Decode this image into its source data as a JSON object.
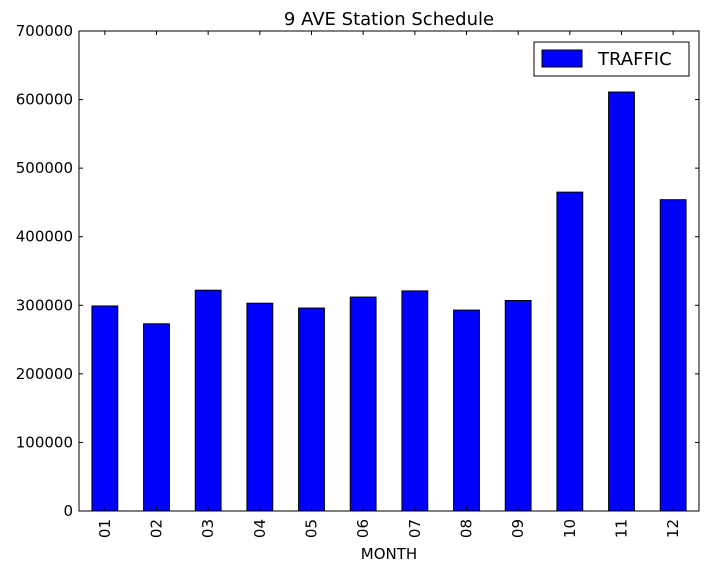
{
  "chart_data": {
    "type": "bar",
    "title": "9 AVE Station Schedule",
    "xlabel": "MONTH",
    "ylabel": "",
    "categories": [
      "01",
      "02",
      "03",
      "04",
      "05",
      "06",
      "07",
      "08",
      "09",
      "10",
      "11",
      "12"
    ],
    "series": [
      {
        "name": "TRAFFIC",
        "color": "#0000ff",
        "values": [
          299000,
          273000,
          322000,
          303000,
          296000,
          312000,
          321000,
          293000,
          307000,
          465000,
          611000,
          454000
        ]
      }
    ],
    "ylim": [
      0,
      700000
    ],
    "yticks": [
      0,
      100000,
      200000,
      300000,
      400000,
      500000,
      600000,
      700000
    ],
    "grid": false,
    "legend_position": "top-right"
  }
}
